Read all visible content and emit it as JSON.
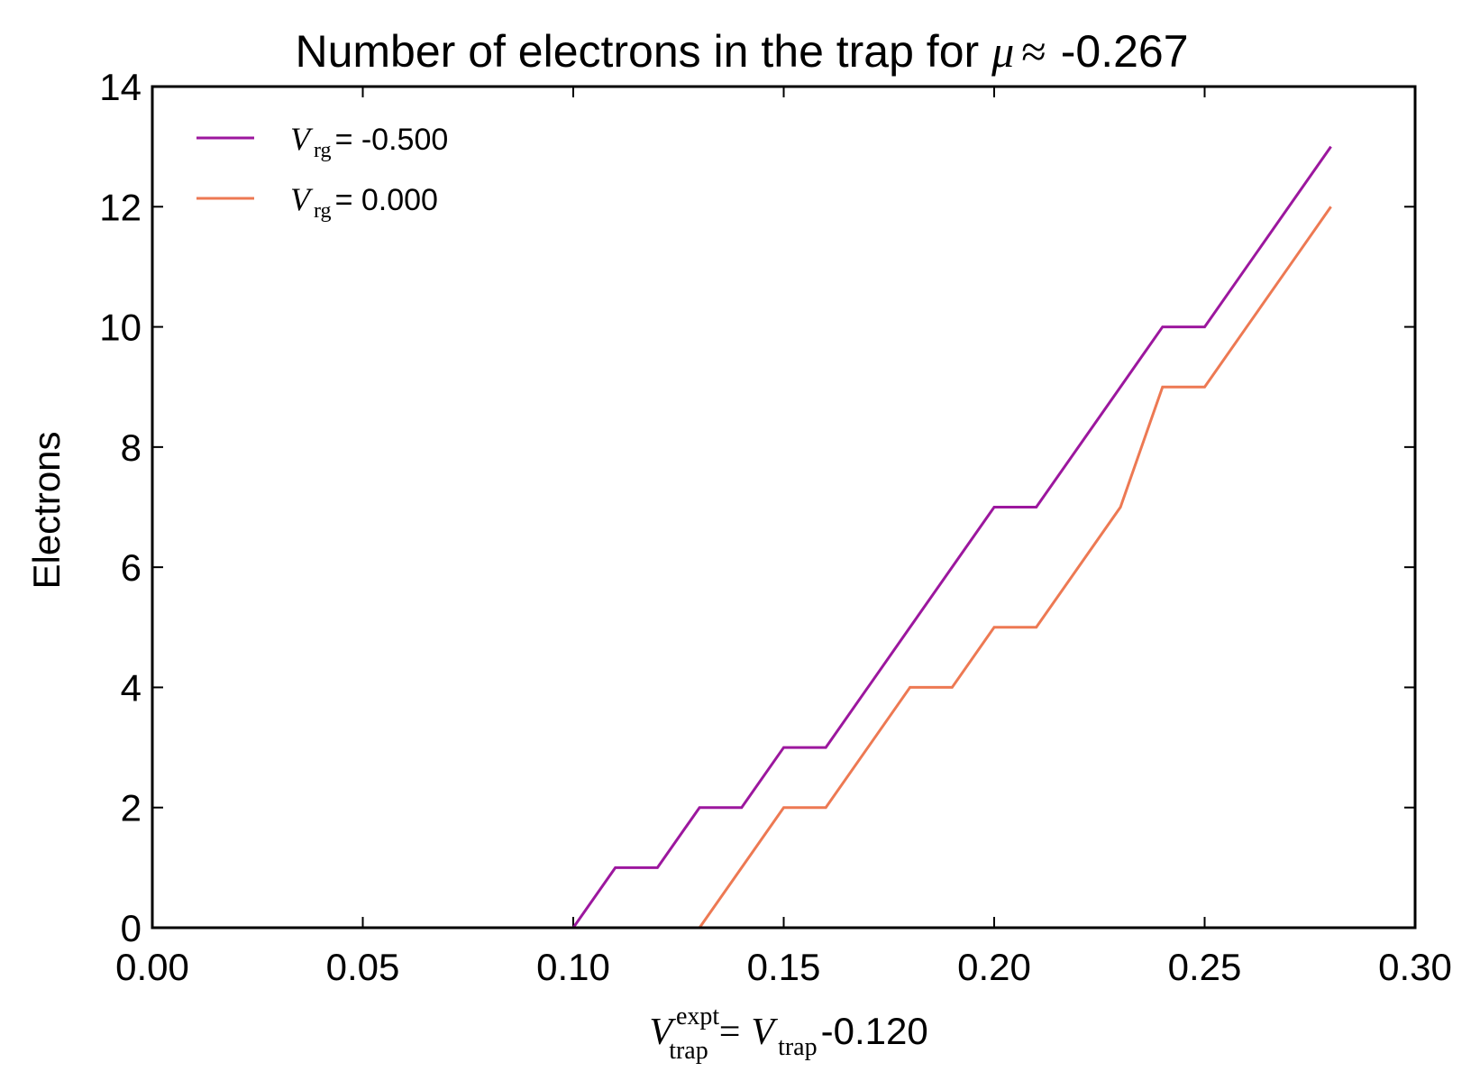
{
  "chart_data": {
    "type": "line",
    "title": {
      "prefix": "Number of electrons in the trap for",
      "symbol": "μ",
      "approx": "≈",
      "value": "-0.267"
    },
    "ylabel": "Electrons",
    "xlabel": {
      "V": "V",
      "sup": "expt",
      "sub": "trap",
      "equals": "=",
      "V2": "V",
      "sub2": "trap",
      "value": "-0.120"
    },
    "xlim": [
      0.0,
      0.3
    ],
    "ylim": [
      0,
      14
    ],
    "xticks": [
      0.0,
      0.05,
      0.1,
      0.15,
      0.2,
      0.25,
      0.3
    ],
    "xtick_labels": [
      "0.00",
      "0.05",
      "0.10",
      "0.15",
      "0.20",
      "0.25",
      "0.30"
    ],
    "yticks": [
      0,
      2,
      4,
      6,
      8,
      10,
      12,
      14
    ],
    "ytick_labels": [
      "0",
      "2",
      "4",
      "6",
      "8",
      "10",
      "12",
      "14"
    ],
    "legend_position": "top-left",
    "series": [
      {
        "name": "V_rg = -0.500",
        "legend": {
          "V": "V",
          "sub": "rg",
          "text": " = -0.500"
        },
        "color": "#9c179e",
        "x": [
          0.1,
          0.11,
          0.12,
          0.13,
          0.14,
          0.15,
          0.16,
          0.17,
          0.18,
          0.19,
          0.2,
          0.21,
          0.22,
          0.23,
          0.24,
          0.25,
          0.26,
          0.27,
          0.28
        ],
        "y": [
          0,
          1,
          1,
          2,
          2,
          3,
          3,
          4,
          5,
          6,
          7,
          7,
          8,
          9,
          10,
          10,
          11,
          12,
          13
        ]
      },
      {
        "name": "V_rg = 0.000",
        "legend": {
          "V": "V",
          "sub": "rg",
          "text": " = 0.000"
        },
        "color": "#ed7953",
        "x": [
          0.13,
          0.14,
          0.15,
          0.16,
          0.17,
          0.18,
          0.19,
          0.2,
          0.21,
          0.22,
          0.23,
          0.24,
          0.25,
          0.26,
          0.27,
          0.28
        ],
        "y": [
          0,
          1,
          2,
          2,
          3,
          4,
          4,
          5,
          5,
          6,
          7,
          9,
          9,
          10,
          11,
          12
        ]
      }
    ]
  }
}
